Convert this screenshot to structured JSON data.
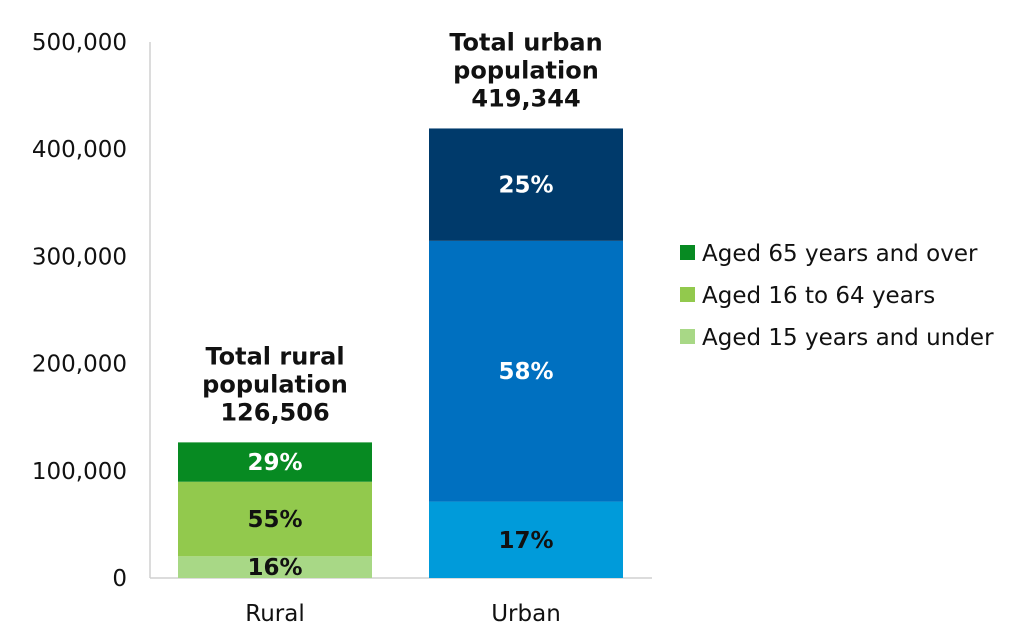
{
  "chart_data": {
    "type": "bar",
    "stacked": true,
    "categories": [
      "Rural",
      "Urban"
    ],
    "ylim": [
      0,
      500000
    ],
    "yticks": [
      0,
      100000,
      200000,
      300000,
      400000,
      500000
    ],
    "ytick_labels": [
      "0",
      "100,000",
      "200,000",
      "300,000",
      "400,000",
      "500,000"
    ],
    "grid": false,
    "legend_position": "right",
    "totals": [
      {
        "category": "Rural",
        "lines": [
          "Total rural",
          "population",
          "126,506"
        ],
        "value": 126506
      },
      {
        "category": "Urban",
        "lines": [
          "Total urban",
          "population",
          "419,344"
        ],
        "value": 419344
      }
    ],
    "bars": [
      {
        "category": "Rural",
        "segments": [
          {
            "series": "Aged 15 years and under",
            "value": 20241,
            "label": "16%",
            "color": "#a8d886",
            "text_color": "#111111"
          },
          {
            "series": "Aged 16 to 64 years",
            "value": 69578,
            "label": "55%",
            "color": "#92c94d",
            "text_color": "#111111"
          },
          {
            "series": "Aged 65 years and over",
            "value": 36687,
            "label": "29%",
            "color": "#078a22",
            "text_color": "#ffffff"
          }
        ]
      },
      {
        "category": "Urban",
        "segments": [
          {
            "series": "Aged 15 years and under",
            "value": 71288,
            "label": "17%",
            "color": "#009bda",
            "text_color": "#111111"
          },
          {
            "series": "Aged 16 to 64 years",
            "value": 243220,
            "label": "58%",
            "color": "#0070c0",
            "text_color": "#ffffff"
          },
          {
            "series": "Aged 65 years and over",
            "value": 104836,
            "label": "25%",
            "color": "#003a6b",
            "text_color": "#ffffff"
          }
        ]
      }
    ],
    "legend": [
      {
        "name": "Aged 65 years and over",
        "color": "#078a22"
      },
      {
        "name": "Aged 16 to 64 years",
        "color": "#92c94d"
      },
      {
        "name": "Aged 15 years and under",
        "color": "#a8d886"
      }
    ]
  }
}
